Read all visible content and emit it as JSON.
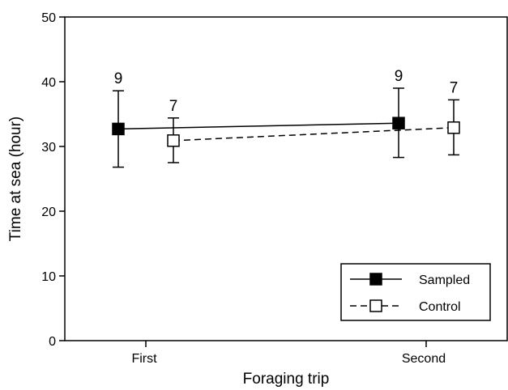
{
  "chart_data": {
    "type": "line",
    "xlabel": "Foraging trip",
    "ylabel": "Time at sea (hour)",
    "categories": [
      "First",
      "Second"
    ],
    "ylim": [
      0,
      50
    ],
    "yticks": [
      0,
      10,
      20,
      30,
      40,
      50
    ],
    "grid": false,
    "legend_position": "bottom-right",
    "series": [
      {
        "name": "Sampled",
        "marker": "filled-square",
        "line_style": "solid",
        "color": "#000000",
        "values": [
          32.7,
          33.6
        ],
        "error_low": [
          26.8,
          28.3
        ],
        "error_high": [
          38.6,
          39.0
        ],
        "n": [
          "9",
          "9"
        ]
      },
      {
        "name": "Control",
        "marker": "open-square",
        "line_style": "dashed",
        "color": "#000000",
        "values": [
          30.9,
          32.9
        ],
        "error_low": [
          27.5,
          28.7
        ],
        "error_high": [
          34.4,
          37.2
        ],
        "n": [
          "7",
          "7"
        ]
      }
    ]
  }
}
